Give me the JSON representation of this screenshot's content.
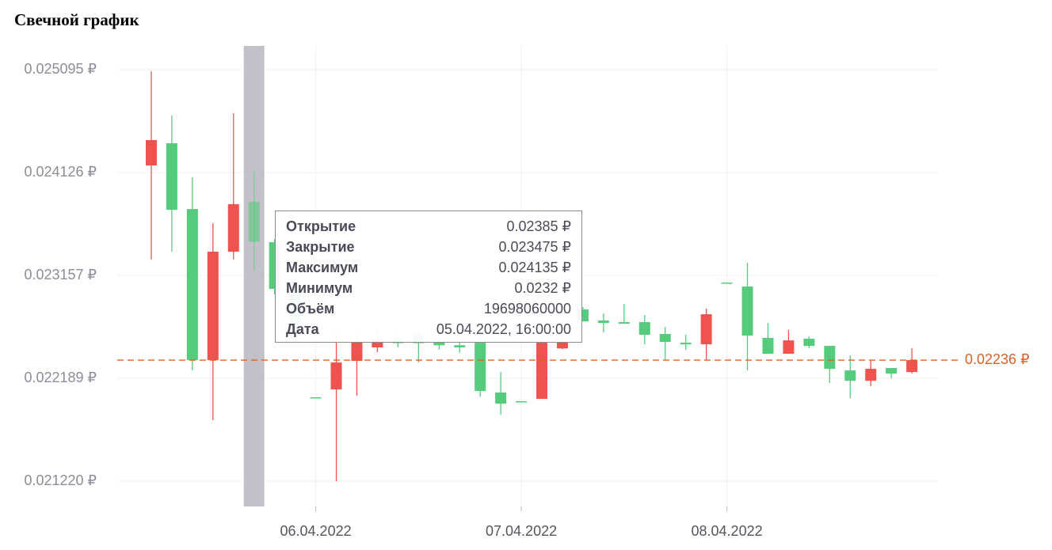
{
  "chart_data": {
    "type": "candlestick",
    "title": "Свечной график",
    "categories": [
      null,
      null,
      null,
      null,
      null,
      null,
      null,
      null,
      "06.04.2022",
      null,
      null,
      null,
      null,
      null,
      null,
      null,
      null,
      null,
      "07.04.2022",
      null,
      null,
      null,
      null,
      null,
      null,
      null,
      null,
      null,
      "08.04.2022",
      null,
      null,
      null,
      null,
      null,
      null,
      null,
      null,
      null
    ],
    "open": [
      0.024193,
      0.024402,
      0.023783,
      0.02236,
      0.023381,
      0.02385,
      0.02347,
      0.02303,
      0.02201,
      0.022084,
      0.022353,
      0.02248,
      0.02256,
      0.0226,
      0.02254,
      0.0225,
      0.022524,
      0.022055,
      0.021973,
      0.021995,
      0.02247,
      0.022837,
      0.022733,
      0.022718,
      0.022718,
      0.022606,
      0.022524,
      0.022509,
      0.02309,
      0.023053,
      0.022569,
      0.02242,
      0.022561,
      0.022494,
      0.022263,
      0.022166,
      0.022286,
      0.022248
    ],
    "high": [
      0.02508,
      0.024663,
      0.024082,
      0.023649,
      0.024685,
      0.024135,
      0.0235,
      0.0231,
      0.02201,
      0.0226,
      0.0226,
      0.02262,
      0.02262,
      0.02265,
      0.0226,
      0.02256,
      0.0226,
      0.022248,
      0.021973,
      0.0226,
      0.0226,
      0.02286,
      0.0228,
      0.022889,
      0.022785,
      0.022673,
      0.022599,
      0.022845,
      0.02309,
      0.023277,
      0.02271,
      0.022643,
      0.022584,
      0.022494,
      0.022405,
      0.022353,
      0.022286,
      0.022472
    ],
    "low": [
      0.023307,
      0.023381,
      0.022263,
      0.021794,
      0.023307,
      0.0232,
      0.02298,
      0.02265,
      0.022002,
      0.02122,
      0.022025,
      0.022435,
      0.02248,
      0.022338,
      0.02246,
      0.02243,
      0.022017,
      0.021846,
      0.021965,
      0.021995,
      0.022464,
      0.022725,
      0.022621,
      0.022703,
      0.022509,
      0.02236,
      0.022457,
      0.02236,
      0.023082,
      0.022263,
      0.02242,
      0.02242,
      0.022472,
      0.022144,
      0.022002,
      0.022114,
      0.022189,
      0.022233
    ],
    "close": [
      0.024432,
      0.023776,
      0.02236,
      0.023381,
      0.023828,
      0.023475,
      0.023031,
      0.0227,
      0.022002,
      0.022338,
      0.022532,
      0.02256,
      0.02252,
      0.02252,
      0.0225,
      0.02248,
      0.02207,
      0.02195,
      0.021965,
      0.022524,
      0.02253,
      0.022725,
      0.02271,
      0.022703,
      0.022599,
      0.022532,
      0.022509,
      0.022792,
      0.023082,
      0.022591,
      0.02242,
      0.022546,
      0.022494,
      0.022278,
      0.022166,
      0.022278,
      0.022233,
      0.02236
    ],
    "rising_color": "#ef5350",
    "falling_color": "#55cc7c",
    "ylim": [
      0.020982,
      0.025319
    ],
    "yticks": [
      {
        "value": 0.025095,
        "label": "0.025095 ₽"
      },
      {
        "value": 0.024126,
        "label": "0.024126 ₽"
      },
      {
        "value": 0.023157,
        "label": "0.023157 ₽"
      },
      {
        "value": 0.022189,
        "label": "0.022189 ₽"
      },
      {
        "value": 0.02122,
        "label": "0.021220 ₽"
      }
    ],
    "grid": true,
    "hovered": 5,
    "last_price": {
      "value": 0.02236,
      "label": "0.02236 ₽"
    },
    "last_price_color": "#d9622b",
    "tooltip": [
      {
        "label": "Открытие",
        "value": "0.02385 ₽"
      },
      {
        "label": "Закрытие",
        "value": "0.023475 ₽"
      },
      {
        "label": "Максимум",
        "value": "0.024135 ₽"
      },
      {
        "label": "Минимум",
        "value": "0.0232 ₽"
      },
      {
        "label": "Объём",
        "value": "19698060000"
      },
      {
        "label": "Дата",
        "value": "05.04.2022, 16:00:00"
      }
    ]
  }
}
